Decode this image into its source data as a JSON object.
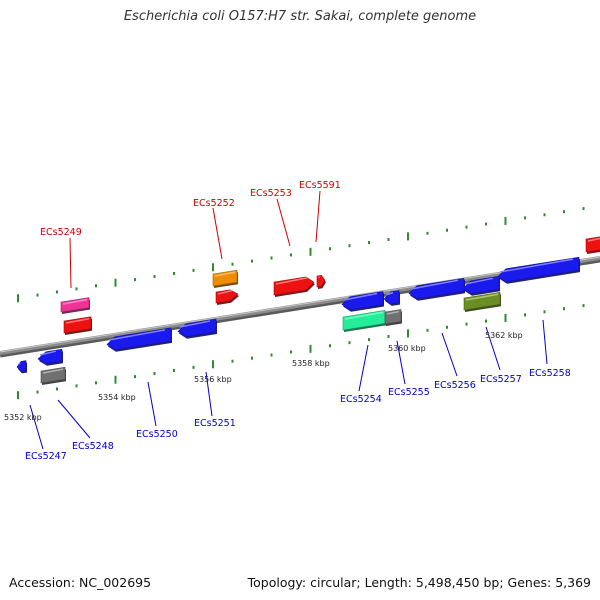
{
  "title": "Escherichia coli O157:H7 str. Sakai, complete genome",
  "footer": {
    "accession": "Accession: NC_002695",
    "stats": "Topology: circular; Length: 5,498,450 bp; Genes: 5,369"
  },
  "colors": {
    "backbone": "#8c8c8c",
    "tick_dots": "#2e8b2e",
    "forward_label": "#cc0000",
    "reverse_label": "#0000cc",
    "red": "#ee1111",
    "blue": "#1a1aee",
    "magenta": "#ee3399",
    "orange": "#f08c00",
    "grey": "#707070",
    "green": "#22ee99",
    "olive": "#6b8e23"
  },
  "tick_labels": [
    "5352 kbp",
    "5354 kbp",
    "5356 kbp",
    "5358 kbp",
    "5360 kbp",
    "5362 kbp"
  ],
  "forward_genes": [
    {
      "label": "ECs5249",
      "color": "magenta",
      "shape": "bar"
    },
    {
      "label": "",
      "color": "red",
      "shape": "bar"
    },
    {
      "label": "ECs5252",
      "color": "orange",
      "shape": "bar"
    },
    {
      "label": "",
      "color": "red",
      "shape": "arrow"
    },
    {
      "label": "ECs5253",
      "color": "red",
      "shape": "arrow"
    },
    {
      "label": "ECs5591",
      "color": "red",
      "shape": "arrow"
    },
    {
      "label": "",
      "color": "red",
      "shape": "bar"
    }
  ],
  "reverse_genes": [
    {
      "label": "ECs5247",
      "color": "blue",
      "shape": "arrow"
    },
    {
      "label": "ECs5248",
      "color": "blue",
      "shape": "arrow"
    },
    {
      "label": "",
      "color": "grey",
      "shape": "bar"
    },
    {
      "label": "ECs5250",
      "color": "blue",
      "shape": "arrow"
    },
    {
      "label": "ECs5251",
      "color": "blue",
      "shape": "arrow"
    },
    {
      "label": "",
      "color": "blue",
      "shape": "arrow"
    },
    {
      "label": "",
      "color": "blue",
      "shape": "arrow"
    },
    {
      "label": "ECs5254",
      "color": "green",
      "shape": "bar"
    },
    {
      "label": "ECs5255",
      "color": "grey",
      "shape": "bar"
    },
    {
      "label": "ECs5256",
      "color": "blue",
      "shape": "arrow"
    },
    {
      "label": "ECs5257",
      "color": "olive",
      "shape": "bar"
    },
    {
      "label": "",
      "color": "blue",
      "shape": "arrow"
    },
    {
      "label": "ECs5258",
      "color": "blue",
      "shape": "arrow"
    }
  ]
}
